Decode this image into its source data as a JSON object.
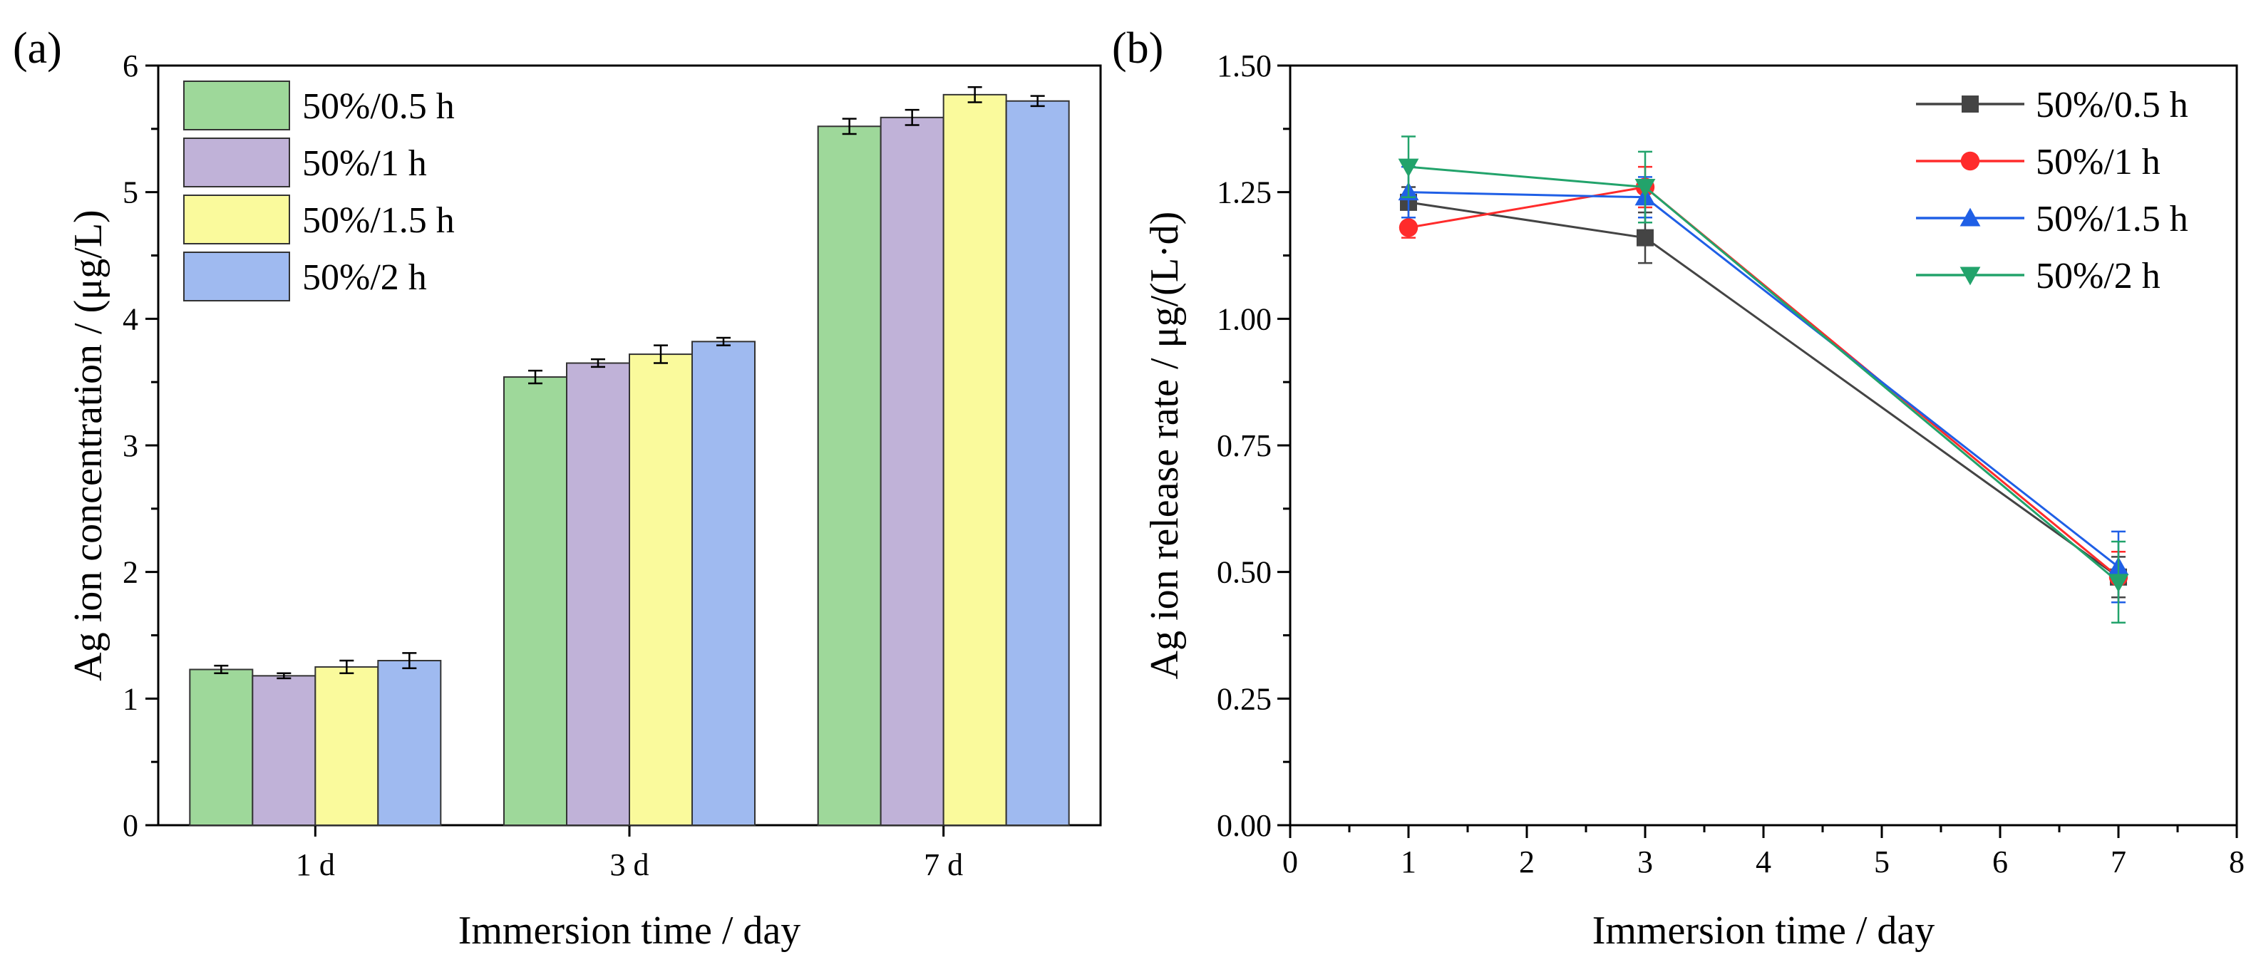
{
  "colors": {
    "bar_series": [
      "#9ed89a",
      "#c0b2d8",
      "#fafa9c",
      "#9fbaf0"
    ],
    "line_series": [
      "#444444",
      "#ff2b2b",
      "#1f5fe6",
      "#22a36b"
    ]
  },
  "chart_data": [
    {
      "panel_label": "(a)",
      "type": "bar",
      "title": "",
      "xlabel": "Immersion time / day",
      "ylabel": "Ag ion concentration / (μg/L)",
      "categories": [
        "1 d",
        "3 d",
        "7 d"
      ],
      "ylim": [
        0,
        6
      ],
      "yticks": [
        "0",
        "1",
        "2",
        "3",
        "4",
        "5",
        "6"
      ],
      "legend_position": "top-left",
      "series": [
        {
          "name": "50%/0.5 h",
          "values": [
            1.23,
            3.54,
            5.52
          ],
          "errors": [
            0.03,
            0.05,
            0.06
          ]
        },
        {
          "name": "50%/1 h",
          "values": [
            1.18,
            3.65,
            5.59
          ],
          "errors": [
            0.02,
            0.03,
            0.06
          ]
        },
        {
          "name": "50%/1.5 h",
          "values": [
            1.25,
            3.72,
            5.77
          ],
          "errors": [
            0.05,
            0.07,
            0.06
          ]
        },
        {
          "name": "50%/2 h",
          "values": [
            1.3,
            3.82,
            5.72
          ],
          "errors": [
            0.06,
            0.03,
            0.04
          ]
        }
      ]
    },
    {
      "panel_label": "(b)",
      "type": "line",
      "title": "",
      "xlabel": "Immersion time / day",
      "ylabel": "Ag ion release rate / μg/(L·d)",
      "x": [
        1,
        3,
        7
      ],
      "xlim": [
        0,
        8
      ],
      "ylim": [
        0,
        1.5
      ],
      "xticks": [
        "0",
        "1",
        "2",
        "3",
        "4",
        "5",
        "6",
        "7",
        "8"
      ],
      "yticks": [
        "0.00",
        "0.25",
        "0.50",
        "0.75",
        "1.00",
        "1.25",
        "1.50"
      ],
      "legend_position": "top-right",
      "series": [
        {
          "name": "50%/0.5 h",
          "marker": "square",
          "values": [
            1.23,
            1.16,
            0.49
          ],
          "errors": [
            0.03,
            0.05,
            0.04
          ]
        },
        {
          "name": "50%/1 h",
          "marker": "circle",
          "values": [
            1.18,
            1.26,
            0.49
          ],
          "errors": [
            0.02,
            0.04,
            0.05
          ]
        },
        {
          "name": "50%/1.5 h",
          "marker": "triangle-up",
          "values": [
            1.25,
            1.24,
            0.51
          ],
          "errors": [
            0.05,
            0.04,
            0.07
          ]
        },
        {
          "name": "50%/2 h",
          "marker": "triangle-down",
          "values": [
            1.3,
            1.26,
            0.48
          ],
          "errors": [
            0.06,
            0.07,
            0.08
          ]
        }
      ]
    }
  ]
}
